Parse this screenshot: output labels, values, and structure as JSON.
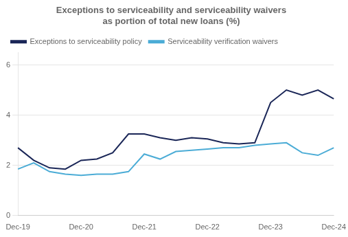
{
  "chart_data": {
    "type": "line",
    "title": "Exceptions to serviceability and serviceability waivers\nas portion of total new loans (%)",
    "categories": [
      "Dec-19",
      null,
      null,
      null,
      "Dec-20",
      null,
      null,
      null,
      "Dec-21",
      null,
      null,
      null,
      "Dec-22",
      null,
      null,
      null,
      "Dec-23",
      null,
      null,
      null,
      "Dec-24"
    ],
    "series": [
      {
        "name": "Exceptions to serviceability policy",
        "color": "#1a2657",
        "values": [
          2.7,
          2.2,
          1.9,
          1.85,
          2.2,
          2.25,
          2.5,
          3.25,
          3.25,
          3.1,
          3.0,
          3.1,
          3.05,
          2.9,
          2.85,
          2.9,
          4.5,
          5.0,
          4.8,
          5.0,
          4.65
        ]
      },
      {
        "name": "Serviceability verification waivers",
        "color": "#4bacd6",
        "values": [
          1.85,
          2.1,
          1.75,
          1.65,
          1.6,
          1.65,
          1.65,
          1.75,
          2.45,
          2.25,
          2.55,
          2.6,
          2.65,
          2.7,
          2.7,
          2.8,
          2.85,
          2.9,
          2.5,
          2.4,
          2.7
        ]
      }
    ],
    "ylim": [
      0,
      6.5
    ],
    "yticks": [
      0,
      2,
      4,
      6
    ],
    "grid": true,
    "legend": "upper left"
  }
}
